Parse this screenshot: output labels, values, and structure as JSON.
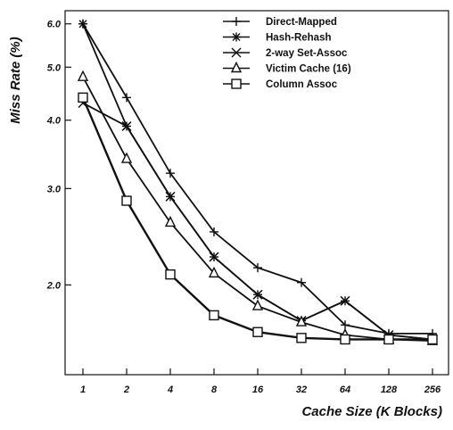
{
  "chart_data": {
    "type": "line",
    "xlabel": "Cache Size (K Blocks)",
    "ylabel": "Miss Rate (%)",
    "y_scale": "log",
    "ylim": [
      1.5,
      6.2
    ],
    "categories": [
      "1",
      "2",
      "4",
      "8",
      "16",
      "32",
      "64",
      "128",
      "256"
    ],
    "y_ticks": [
      {
        "value": 2.0,
        "label": "2.0"
      },
      {
        "value": 3.0,
        "label": "3.0"
      },
      {
        "value": 4.0,
        "label": "4.0"
      },
      {
        "value": 5.0,
        "label": "5.0"
      },
      {
        "value": 6.0,
        "label": "6.0"
      }
    ],
    "legend_position": "top-right",
    "grid": false,
    "series": [
      {
        "name": "Direct-Mapped",
        "marker": "plus",
        "values": [
          6.0,
          4.4,
          3.2,
          2.5,
          2.15,
          2.02,
          1.69,
          1.63,
          1.63
        ]
      },
      {
        "name": "Hash-Rehash",
        "marker": "star",
        "values": [
          6.0,
          3.9,
          2.9,
          2.25,
          1.92,
          1.72,
          1.87,
          1.62,
          1.59
        ]
      },
      {
        "name": "2-way Set-Assoc",
        "marker": "x",
        "values": [
          4.3,
          3.9,
          2.9,
          2.25,
          1.92,
          1.72,
          1.87,
          1.62,
          1.59
        ]
      },
      {
        "name": "Victim Cache (16)",
        "marker": "triangle",
        "values": [
          4.8,
          3.4,
          2.6,
          2.1,
          1.83,
          1.71,
          1.62,
          1.59,
          1.58
        ]
      },
      {
        "name": "Column Assoc",
        "marker": "square",
        "values": [
          4.4,
          2.85,
          2.09,
          1.76,
          1.64,
          1.6,
          1.59,
          1.59,
          1.59
        ]
      }
    ]
  }
}
